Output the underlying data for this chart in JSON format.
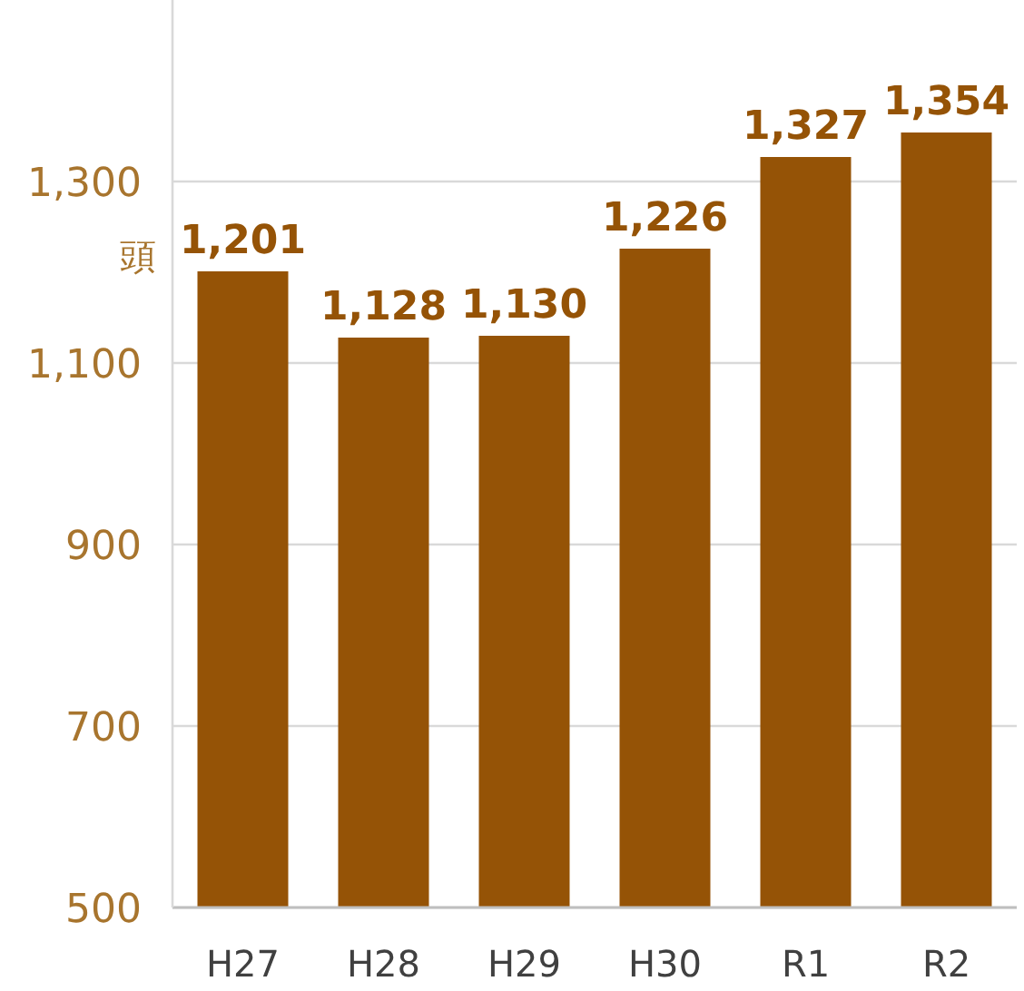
{
  "chart_data": {
    "type": "bar",
    "ylabel": "頭",
    "categories": [
      "H27",
      "H28",
      "H29",
      "H30",
      "R1",
      "R2"
    ],
    "values": [
      1201,
      1128,
      1130,
      1226,
      1327,
      1354
    ],
    "color": "#955306",
    "ylim": [
      500,
      1500
    ],
    "yticks": [
      {
        "value": 500,
        "label": "500"
      },
      {
        "value": 700,
        "label": "700"
      },
      {
        "value": 900,
        "label": "900"
      },
      {
        "value": 1100,
        "label": "1,100"
      },
      {
        "value": 1300,
        "label": "1,300"
      }
    ],
    "grid": "y",
    "value_labels": [
      "1,201",
      "1,128",
      "1,130",
      "1,226",
      "1,327",
      "1,354"
    ]
  }
}
